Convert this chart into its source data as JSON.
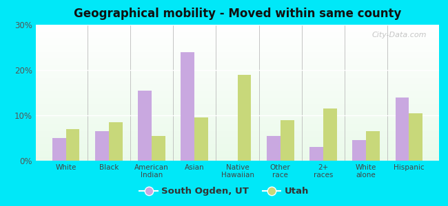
{
  "title": "Geographical mobility - Moved within same county",
  "categories": [
    "White",
    "Black",
    "American\nIndian",
    "Asian",
    "Native\nHawaiian",
    "Other\nrace",
    "2+\nraces",
    "White\nalone",
    "Hispanic"
  ],
  "south_ogden": [
    5.0,
    6.5,
    15.5,
    24.0,
    0.0,
    5.5,
    3.0,
    4.5,
    14.0
  ],
  "utah": [
    7.0,
    8.5,
    5.5,
    9.5,
    19.0,
    9.0,
    11.5,
    6.5,
    10.5
  ],
  "bar_color_so": "#c9a8e0",
  "bar_color_ut": "#c8d87a",
  "bg_outer": "#00e8f8",
  "ylim": [
    0,
    30
  ],
  "yticks": [
    0,
    10,
    20,
    30
  ],
  "ytick_labels": [
    "0%",
    "10%",
    "20%",
    "30%"
  ],
  "legend_so": "South Ogden, UT",
  "legend_ut": "Utah",
  "watermark": "City-Data.com"
}
